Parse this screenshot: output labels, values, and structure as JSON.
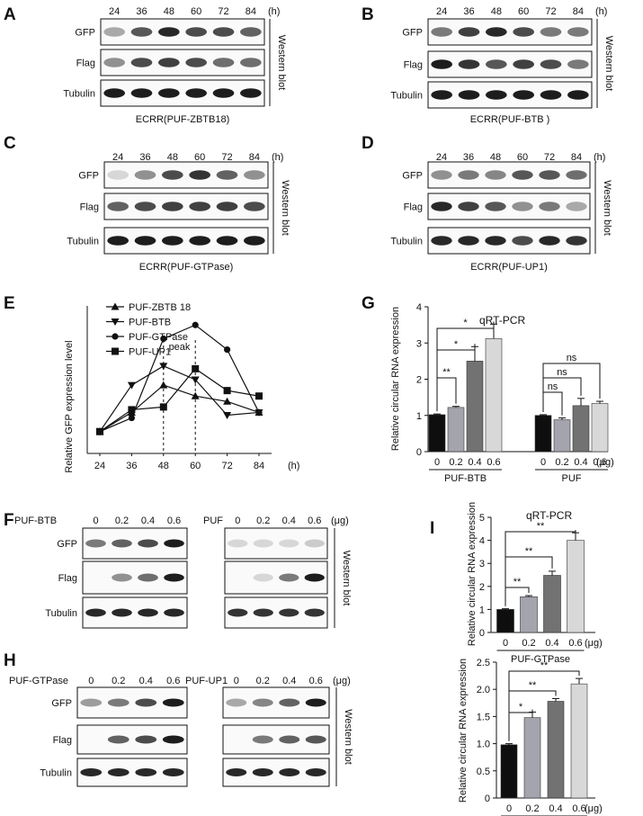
{
  "panels": {
    "A": {
      "letter": "A",
      "caption": "ECRR(PUF-ZBTB18)",
      "times": [
        "24",
        "36",
        "48",
        "60",
        "72",
        "84"
      ],
      "unit": "(h)",
      "rows": [
        "GFP",
        "Flag",
        "Tubulin"
      ],
      "side": "Western blot"
    },
    "B": {
      "letter": "B",
      "caption": "ECRR(PUF-BTB )",
      "times": [
        "24",
        "36",
        "48",
        "60",
        "72",
        "84"
      ],
      "unit": "(h)",
      "rows": [
        "GFP",
        "Flag",
        "Tubulin"
      ],
      "side": "Western blot"
    },
    "C": {
      "letter": "C",
      "caption": "ECRR(PUF-GTPase)",
      "times": [
        "24",
        "36",
        "48",
        "60",
        "72",
        "84"
      ],
      "unit": "(h)",
      "rows": [
        "GFP",
        "Flag",
        "Tubulin"
      ],
      "side": "Western blot"
    },
    "D": {
      "letter": "D",
      "caption": "ECRR(PUF-UP1)",
      "times": [
        "24",
        "36",
        "48",
        "60",
        "72",
        "84"
      ],
      "unit": "(h)",
      "rows": [
        "GFP",
        "Flag",
        "Tubulin"
      ],
      "side": "Western blot"
    },
    "F": {
      "letter": "F",
      "left_label": "PUF-BTB",
      "right_label": "PUF",
      "doses": [
        "0",
        "0.2",
        "0.4",
        "0.6"
      ],
      "unit": "(μg)",
      "rows": [
        "GFP",
        "Flag",
        "Tubulin"
      ],
      "side": "Western blot"
    },
    "H": {
      "letter": "H",
      "left_label": "PUF-GTPase",
      "right_label": "PUF-UP1",
      "doses": [
        "0",
        "0.2",
        "0.4",
        "0.6"
      ],
      "unit": "(μg)",
      "rows": [
        "GFP",
        "Flag",
        "Tubulin"
      ],
      "side": "Western blot"
    }
  },
  "blot_intensity": {
    "A": {
      "GFP": [
        0.35,
        0.7,
        0.9,
        0.75,
        0.75,
        0.65
      ],
      "Flag": [
        0.45,
        0.75,
        0.8,
        0.75,
        0.6,
        0.6
      ],
      "Tubulin": [
        0.95,
        0.95,
        0.95,
        0.95,
        0.95,
        0.95
      ]
    },
    "B": {
      "GFP": [
        0.55,
        0.8,
        0.9,
        0.75,
        0.55,
        0.55
      ],
      "Flag": [
        0.95,
        0.85,
        0.7,
        0.8,
        0.75,
        0.55
      ],
      "Tubulin": [
        0.95,
        0.95,
        0.95,
        0.95,
        0.95,
        0.95
      ]
    },
    "C": {
      "GFP": [
        0.15,
        0.45,
        0.75,
        0.85,
        0.65,
        0.45
      ],
      "Flag": [
        0.65,
        0.75,
        0.8,
        0.8,
        0.8,
        0.75
      ],
      "Tubulin": [
        0.95,
        0.95,
        0.95,
        0.95,
        0.95,
        0.95
      ]
    },
    "D": {
      "GFP": [
        0.45,
        0.55,
        0.5,
        0.7,
        0.7,
        0.6
      ],
      "Flag": [
        0.9,
        0.8,
        0.7,
        0.45,
        0.55,
        0.35
      ],
      "Tubulin": [
        0.9,
        0.9,
        0.9,
        0.75,
        0.9,
        0.85
      ]
    },
    "F_left": {
      "GFP": [
        0.55,
        0.65,
        0.75,
        0.95
      ],
      "Flag": [
        0.0,
        0.45,
        0.6,
        0.95
      ],
      "Tubulin": [
        0.9,
        0.9,
        0.9,
        0.9
      ]
    },
    "F_right": {
      "GFP": [
        0.15,
        0.15,
        0.15,
        0.2
      ],
      "Flag": [
        0.0,
        0.15,
        0.55,
        0.95
      ],
      "Tubulin": [
        0.85,
        0.85,
        0.85,
        0.85
      ]
    },
    "H_left": {
      "GFP": [
        0.4,
        0.55,
        0.75,
        0.95
      ],
      "Flag": [
        0.0,
        0.65,
        0.75,
        0.95
      ],
      "Tubulin": [
        0.9,
        0.9,
        0.9,
        0.9
      ]
    },
    "H_right": {
      "GFP": [
        0.35,
        0.5,
        0.65,
        0.95
      ],
      "Flag": [
        0.0,
        0.55,
        0.65,
        0.7
      ],
      "Tubulin": [
        0.9,
        0.9,
        0.9,
        0.9
      ]
    }
  },
  "chart_data": [
    {
      "id": "E",
      "letter": "E",
      "type": "line",
      "ylabel": "Relative GFP expression level",
      "xlabel": "(h)",
      "categories": [
        "24",
        "36",
        "48",
        "60",
        "72",
        "84"
      ],
      "ylim": [
        0.6,
        3.3
      ],
      "peak_label": "peak",
      "peak_at": [
        "48",
        "60"
      ],
      "series": [
        {
          "name": "PUF-ZBTB 18",
          "marker": "triangle-up",
          "values": [
            1.0,
            1.35,
            1.85,
            1.65,
            1.55,
            1.35
          ]
        },
        {
          "name": "PUF-BTB",
          "marker": "triangle-down",
          "values": [
            1.0,
            1.85,
            2.2,
            1.95,
            1.3,
            1.35
          ]
        },
        {
          "name": "PUF-GTPase",
          "marker": "circle",
          "values": [
            1.0,
            1.25,
            2.7,
            2.95,
            2.5,
            1.35
          ]
        },
        {
          "name": "PUF-UP1",
          "marker": "square",
          "values": [
            1.0,
            1.4,
            1.45,
            2.15,
            1.75,
            1.65
          ]
        }
      ]
    },
    {
      "id": "G",
      "letter": "G",
      "type": "bar",
      "title": "qRT-PCR",
      "ylabel": "Relative circular RNA expression",
      "ylim": [
        0,
        4
      ],
      "yticks": [
        "0",
        "1",
        "2",
        "3",
        "4"
      ],
      "unit": "(μg)",
      "groups": [
        {
          "name": "PUF-BTB",
          "categories": [
            "0",
            "0.2",
            "0.4",
            "0.6"
          ],
          "values": [
            1.02,
            1.22,
            2.5,
            3.12
          ],
          "errors": [
            0.02,
            0.03,
            0.4,
            0.4
          ],
          "sig": [
            {
              "to": "0.2",
              "label": "**"
            },
            {
              "to": "0.4",
              "label": "*"
            },
            {
              "to": "0.6",
              "label": "*"
            }
          ]
        },
        {
          "name": "PUF",
          "categories": [
            "0",
            "0.2",
            "0.4",
            "0.6"
          ],
          "values": [
            1.0,
            0.88,
            1.27,
            1.33
          ],
          "errors": [
            0.02,
            0.05,
            0.2,
            0.06
          ],
          "sig": [
            {
              "to": "0.2",
              "label": "ns"
            },
            {
              "to": "0.4",
              "label": "ns"
            },
            {
              "to": "0.6",
              "label": "ns"
            }
          ]
        }
      ]
    },
    {
      "id": "I_top",
      "letter": "I",
      "type": "bar",
      "title": "qRT-PCR",
      "ylabel": "Relative circular RNA expression",
      "ylim": [
        0,
        5
      ],
      "yticks": [
        "0",
        "1",
        "2",
        "3",
        "4",
        "5"
      ],
      "unit": "(μg)",
      "group_label": "PUF-GTPase",
      "categories": [
        "0",
        "0.2",
        "0.4",
        "0.6"
      ],
      "values": [
        1.0,
        1.55,
        2.48,
        4.0
      ],
      "errors": [
        0.03,
        0.05,
        0.18,
        0.33
      ],
      "sig": [
        {
          "to": "0.2",
          "label": "**"
        },
        {
          "to": "0.4",
          "label": "**"
        },
        {
          "to": "0.6",
          "label": "**"
        }
      ]
    },
    {
      "id": "I_bottom",
      "type": "bar",
      "ylabel": "Relative circular RNA expression",
      "ylim": [
        0,
        2.5
      ],
      "yticks": [
        "0",
        "0.5",
        "1.0",
        "1.5",
        "2.0",
        "2.5"
      ],
      "unit": "(μg)",
      "group_label": "PUF-UP1",
      "categories": [
        "0",
        "0.2",
        "0.4",
        "0.6"
      ],
      "values": [
        0.98,
        1.48,
        1.78,
        2.1
      ],
      "errors": [
        0.02,
        0.1,
        0.05,
        0.1
      ],
      "sig": [
        {
          "to": "0.2",
          "label": "*"
        },
        {
          "to": "0.4",
          "label": "**"
        },
        {
          "to": "0.6",
          "label": "**"
        }
      ]
    }
  ],
  "colors": {
    "bar_shades": [
      "#0e0e0e",
      "#a4a4ae",
      "#727272",
      "#d8d8d8"
    ],
    "blot_band": "#111111",
    "blot_bg": "#fafafa"
  }
}
